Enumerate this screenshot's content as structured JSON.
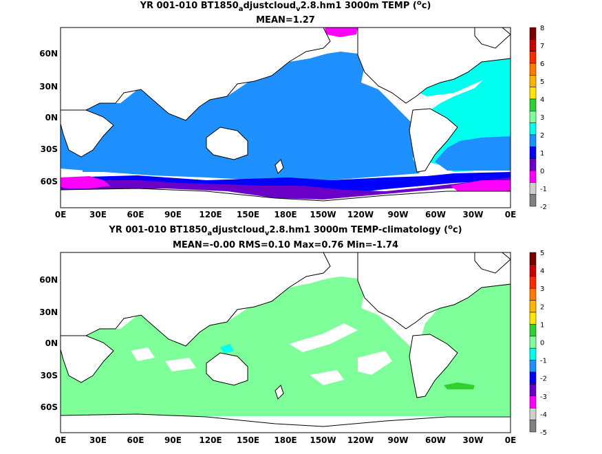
{
  "panels": [
    {
      "title_main": "YR 001-010 BT1850",
      "title_sub1": "a",
      "title_mid": "djustcloud",
      "title_sub2": "v",
      "title_rest": "2.8.hm1 3000m TEMP (",
      "title_sup": "o",
      "title_end": "c)",
      "stats": "MEAN=1.27",
      "colorbar": {
        "labels": [
          "8",
          "7",
          "6",
          "5",
          "4",
          "3",
          "2",
          "1",
          "0",
          "-1",
          "-2"
        ],
        "colors": [
          "#7a0000",
          "#c80000",
          "#ff2a00",
          "#ff7a00",
          "#ffb400",
          "#ffe600",
          "#2ed12e",
          "#7fff9a",
          "#00ffee",
          "#1e90ff",
          "#0000ff",
          "#6a00c8",
          "#ff00ff",
          "#cfcfcf",
          "#808080"
        ]
      }
    },
    {
      "title_main": "YR 001-010 BT1850",
      "title_sub1": "a",
      "title_mid": "djustcloud",
      "title_sub2": "v",
      "title_rest": "2.8.hm1 3000m TEMP-climatology (",
      "title_sup": "o",
      "title_end": "c)",
      "stats": "MEAN=-0.00   RMS=0.10   Max=0.76   Min=-1.74",
      "colorbar": {
        "labels": [
          "5",
          "4",
          "3",
          "2",
          "1",
          "0",
          "-1",
          "-2",
          "-3",
          "-4",
          "-5"
        ],
        "colors": [
          "#7a0000",
          "#c80000",
          "#ff2a00",
          "#ff7a00",
          "#ffb400",
          "#ffe600",
          "#2ed12e",
          "#7fff9a",
          "#00ffee",
          "#1e90ff",
          "#0000ff",
          "#6a00c8",
          "#ff00ff",
          "#cfcfcf",
          "#808080"
        ]
      }
    }
  ],
  "axes": {
    "lat_labels": [
      "60N",
      "30N",
      "0N",
      "30S",
      "60S"
    ],
    "lon_labels": [
      "0E",
      "30E",
      "60E",
      "90E",
      "120E",
      "150E",
      "180E",
      "150W",
      "120W",
      "90W",
      "60W",
      "30W",
      "0E"
    ]
  }
}
